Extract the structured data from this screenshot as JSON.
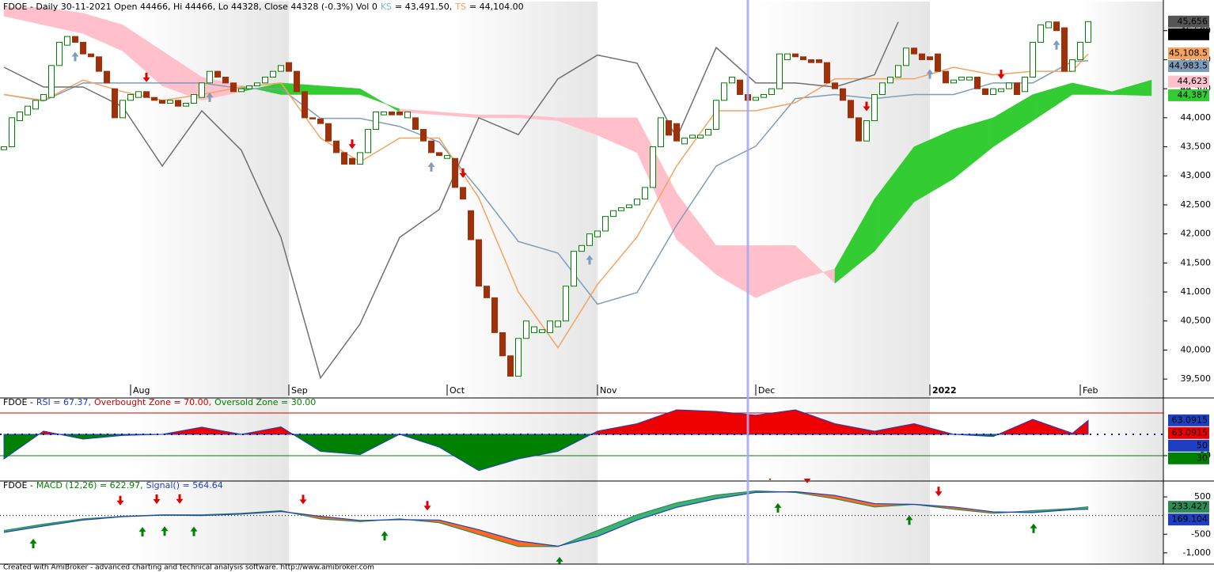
{
  "chart_data": [
    {
      "type": "candlestick",
      "title_parts": [
        {
          "text": "FDOE - Daily 30-11-2021 Open 44466, Hi 44466, Lo 44328, Close 44328 (-0.3%) Vol 0",
          "color": "#000000"
        },
        {
          "text": "KS",
          "color": "#7fb0d8"
        },
        {
          "text": "= 43,491.50,",
          "color": "#000000"
        },
        {
          "text": "TS",
          "color": "#f4a460"
        },
        {
          "text": "= 44,104.00",
          "color": "#000000"
        }
      ],
      "x_labels": [
        {
          "value": 16,
          "label": "Aug"
        },
        {
          "value": 36,
          "label": "Sep"
        },
        {
          "value": 56,
          "label": "Oct"
        },
        {
          "value": 75,
          "label": "Nov"
        },
        {
          "value": 95,
          "label": "Dec"
        },
        {
          "value": 117,
          "label": "2022"
        },
        {
          "value": 136,
          "label": "Feb"
        }
      ],
      "open": [
        43450,
        43500,
        43950,
        44050,
        44150,
        44300,
        44350,
        44900,
        45250,
        45400,
        45300,
        45100,
        45050,
        44800,
        44500,
        44000,
        44300,
        44350,
        44450,
        44350,
        44300,
        44250,
        44300,
        44200,
        44250,
        44350,
        44600,
        44800,
        44700,
        44600,
        44450,
        44500,
        44550,
        44600,
        44700,
        44800,
        44950,
        44800,
        44450,
        44000,
        43980,
        43900,
        43600,
        43400,
        43300,
        43200,
        43400,
        43800,
        44050,
        44100,
        44100,
        44000,
        44000,
        43800,
        43600,
        43400,
        43300,
        43300,
        42800,
        42400,
        41900,
        41100,
        40900,
        40300,
        39900,
        39550,
        40200,
        40300,
        40300,
        40300,
        40400,
        40500,
        41100,
        41700,
        41800,
        41950,
        42050,
        42300,
        42400,
        42450,
        42500,
        42600,
        42800,
        43500,
        43950,
        43900,
        43550,
        43650,
        43650,
        43700,
        43800,
        44300,
        44600,
        44650,
        44400,
        44300,
        44350,
        44400,
        44500,
        45000,
        45100,
        45050,
        45000,
        45000,
        44950,
        44600,
        44500,
        44300,
        44000,
        43600,
        43950,
        44400,
        44600,
        44700,
        44900,
        45200,
        45100,
        45050,
        45100,
        44800,
        44600,
        44650,
        44650,
        44700,
        44500,
        44400,
        44450,
        44500,
        44600,
        44450,
        44700,
        45300,
        45550,
        45650,
        45550,
        44800,
        45000,
        45300
      ],
      "close": [
        43500,
        44000,
        44100,
        44200,
        44300,
        44400,
        44900,
        45300,
        45400,
        45300,
        45100,
        45050,
        44800,
        44600,
        44000,
        44300,
        44400,
        44450,
        44350,
        44300,
        44250,
        44300,
        44200,
        44250,
        44400,
        44600,
        44800,
        44700,
        44600,
        44450,
        44500,
        44550,
        44600,
        44700,
        44800,
        44900,
        44800,
        44450,
        44000,
        43980,
        43900,
        43600,
        43400,
        43200,
        43200,
        43400,
        43800,
        44100,
        44100,
        44050,
        44050,
        44100,
        43800,
        43600,
        43400,
        43350,
        43350,
        42800,
        42600,
        41900,
        41100,
        40900,
        40300,
        39900,
        39550,
        40200,
        40500,
        40400,
        40350,
        40500,
        40500,
        41100,
        41700,
        41800,
        42000,
        42050,
        42300,
        42400,
        42450,
        42500,
        42600,
        42800,
        43500,
        44000,
        43700,
        43600,
        43650,
        43700,
        43700,
        43800,
        44300,
        44600,
        44700,
        44400,
        44300,
        44350,
        44400,
        44500,
        45100,
        45100,
        45050,
        45000,
        44950,
        44950,
        44600,
        44500,
        44300,
        44000,
        43600,
        43950,
        44400,
        44600,
        44700,
        44900,
        45200,
        45100,
        45000,
        45000,
        44800,
        44600,
        44650,
        44700,
        44700,
        44500,
        44400,
        44500,
        44500,
        44600,
        44400,
        44700,
        45300,
        45600,
        45650,
        45500,
        44800,
        45000,
        45300,
        45656
      ],
      "up_color": "#008000",
      "down_color": "#a0300a",
      "lines": [
        {
          "color": "#7f9db9",
          "x": [
            0,
            5,
            10,
            15,
            20,
            25,
            30,
            35,
            40,
            45,
            50,
            55,
            60,
            65,
            70,
            75,
            80,
            85,
            90,
            95,
            100,
            105,
            110,
            115,
            120,
            125,
            130,
            135,
            137
          ],
          "values": [
            44400,
            44290,
            44600,
            44600,
            44600,
            44600,
            44500,
            44500,
            43990,
            43990,
            43850,
            43580,
            42760,
            41870,
            41670,
            40790,
            40990,
            42150,
            43170,
            43510,
            44330,
            44400,
            44330,
            44400,
            44400,
            44600,
            44600,
            44970,
            44980
          ]
        },
        {
          "color": "#f4a460",
          "x": [
            0,
            5,
            10,
            15,
            20,
            25,
            30,
            35,
            40,
            45,
            50,
            55,
            60,
            65,
            70,
            75,
            80,
            85,
            90,
            95,
            100,
            105,
            110,
            115,
            120,
            125,
            130,
            135,
            137
          ],
          "values": [
            44400,
            44300,
            44650,
            44450,
            44300,
            44400,
            44530,
            44600,
            43650,
            43240,
            43650,
            43650,
            42620,
            41000,
            40040,
            41130,
            41950,
            43170,
            44120,
            44120,
            44260,
            44670,
            44670,
            44670,
            44870,
            44740,
            44800,
            44800,
            45100
          ]
        },
        {
          "color": "#707070",
          "x": [
            0,
            5,
            10,
            15,
            20,
            25,
            30,
            35,
            40,
            45,
            50,
            55,
            60,
            65,
            70,
            75,
            80,
            85,
            90,
            95,
            100,
            105,
            110,
            113
          ],
          "values": [
            44870,
            44530,
            44530,
            44190,
            43170,
            44120,
            43440,
            41940,
            39520,
            40450,
            41940,
            42420,
            44000,
            43710,
            44670,
            45080,
            44940,
            43650,
            45210,
            44600,
            44600,
            44530,
            44740,
            45650
          ]
        }
      ],
      "cloud": {
        "up_color": "#33cc33",
        "down_color": "#ffc0cb",
        "x": [
          0,
          5,
          10,
          15,
          20,
          25,
          30,
          35,
          40,
          45,
          50,
          55,
          60,
          65,
          70,
          75,
          80,
          85,
          90,
          95,
          100,
          105,
          110,
          115,
          120,
          125,
          130,
          135,
          140,
          145
        ],
        "span_a": [
          45750,
          45600,
          45450,
          45150,
          44550,
          44300,
          44450,
          44600,
          44550,
          44500,
          44100,
          44050,
          44000,
          44000,
          43950,
          43700,
          43400,
          41900,
          41300,
          40900,
          41200,
          41400,
          42600,
          43500,
          43800,
          44000,
          44400,
          44600,
          44450,
          44650
        ],
        "span_b": [
          45900,
          45900,
          45800,
          45600,
          45150,
          44700,
          44550,
          44400,
          44400,
          44400,
          44150,
          44100,
          44050,
          44050,
          44000,
          44000,
          44000,
          42700,
          41800,
          41800,
          41800,
          41150,
          41700,
          42550,
          42950,
          43500,
          43950,
          44400,
          44400,
          44380
        ]
      },
      "sell_signals": [
        18,
        44,
        58,
        109,
        126
      ],
      "buy_signals": [
        9,
        26,
        54,
        74,
        117,
        133
      ],
      "sell_color": "#e00000",
      "buy_color": "#7f9db9",
      "selected_index": 94,
      "ylim": [
        39420,
        45960
      ],
      "yticks": [
        {
          "value": 39500,
          "label": "39,500"
        },
        {
          "value": 40000,
          "label": "40,000"
        },
        {
          "value": 40500,
          "label": "40,500"
        },
        {
          "value": 41000,
          "label": "41,000"
        },
        {
          "value": 41500,
          "label": "41,500"
        },
        {
          "value": 42000,
          "label": "42,000"
        },
        {
          "value": 42500,
          "label": "42,500"
        },
        {
          "value": 43000,
          "label": "43,000"
        },
        {
          "value": 43500,
          "label": "43,500"
        },
        {
          "value": 44000,
          "label": "44,000"
        },
        {
          "value": 44500,
          "label": "44,500"
        },
        {
          "value": 45000,
          "label": "45,000"
        },
        {
          "value": 45500,
          "label": "45,500"
        }
      ],
      "value_tags": [
        {
          "value": 45656,
          "label": "45,656",
          "color": "#555555"
        },
        {
          "value": 45656,
          "label": "45,656",
          "color": "#000000"
        },
        {
          "value": 45108.5,
          "label": "45,108.5",
          "color": "#f4a460"
        },
        {
          "value": 44983.5,
          "label": "44,983.5",
          "color": "#7f9db9"
        },
        {
          "value": 44623,
          "label": "44,623",
          "color": "#ffc0cb"
        },
        {
          "value": 44387,
          "label": "44,387",
          "color": "#33cc33"
        }
      ]
    },
    {
      "type": "area",
      "title_parts": [
        {
          "text": "FDOE -",
          "color": "#000000"
        },
        {
          "text": "RSI = 67.37,",
          "color": "#1e40c0"
        },
        {
          "text": "Overbought Zone = 70.00,",
          "color": "#d00000"
        },
        {
          "text": "Oversold Zone = 30.00",
          "color": "#008000"
        }
      ],
      "x": [
        0,
        5,
        10,
        15,
        20,
        25,
        30,
        35,
        40,
        45,
        50,
        55,
        60,
        65,
        70,
        75,
        80,
        85,
        90,
        95,
        100,
        105,
        110,
        115,
        120,
        125,
        130,
        135,
        137
      ],
      "values": [
        27,
        53,
        45.5,
        49,
        50,
        56.7,
        50,
        57,
        34,
        31,
        50,
        38,
        16,
        27,
        34,
        53,
        60,
        73,
        71.5,
        68,
        73,
        60,
        53,
        60,
        50,
        48,
        64,
        51,
        63.0915
      ],
      "baseline": 50,
      "above_color": "#ee0000",
      "below_color": "#008000",
      "zones": [
        {
          "value": 70,
          "color": "#d00000"
        },
        {
          "value": 30,
          "color": "#008000"
        }
      ],
      "ylim": [
        7,
        82.6
      ],
      "yticks": [
        30
      ],
      "value_tags": [
        {
          "value": 63.0915,
          "label": "63.0915",
          "color": "#1e40c0"
        },
        {
          "value": 63.0915,
          "label": "63.0915",
          "color": "#ee0000"
        },
        {
          "value": 50,
          "label": "50",
          "color": "#1e40c0"
        },
        {
          "value": 30,
          "label": "30",
          "color": "#008000"
        }
      ]
    },
    {
      "type": "line",
      "title_parts": [
        {
          "text": "FDOE -",
          "color": "#000000"
        },
        {
          "text": "MACD (12,26) = 622.97,",
          "color": "#008000"
        },
        {
          "text": "Signal() = 564.64",
          "color": "#1e40c0"
        }
      ],
      "x": [
        0,
        5,
        10,
        15,
        20,
        25,
        30,
        35,
        40,
        45,
        50,
        55,
        60,
        65,
        70,
        75,
        80,
        85,
        90,
        95,
        100,
        105,
        110,
        115,
        120,
        125,
        130,
        135,
        137
      ],
      "series": [
        {
          "color": "#2e8b57",
          "values": [
            -400,
            -230,
            -90,
            -20,
            20,
            20,
            60,
            130,
            -90,
            -160,
            -90,
            -190,
            -510,
            -830,
            -830,
            -400,
            20,
            340,
            550,
            660,
            620,
            450,
            230,
            300,
            170,
            60,
            130,
            190,
            233.427
          ]
        },
        {
          "color": "#1e40c0",
          "values": [
            -450,
            -280,
            -120,
            -30,
            10,
            0,
            40,
            110,
            -20,
            -130,
            -110,
            -120,
            -380,
            -680,
            -820,
            -560,
            -120,
            220,
            450,
            620,
            640,
            540,
            320,
            300,
            230,
            100,
            80,
            160,
            169.104
          ]
        }
      ],
      "fill_up_color": "#3cb371",
      "fill_down_color": "#ff6a1a",
      "sell_signals": [
        14.7,
        19.3,
        22.2,
        37.8,
        53.5,
        96.8,
        101.5,
        118.1
      ],
      "buy_signals": [
        3.7,
        17.5,
        20.3,
        24,
        48.1,
        70.2,
        97.8,
        114.4,
        130.1
      ],
      "sell_color": "#e00000",
      "buy_color": "#008000",
      "baseline": 0,
      "ylim": [
        -1300,
        883
      ],
      "yticks": [
        500,
        -500,
        {
          "value": -1000,
          "label": "-1,000"
        }
      ],
      "value_tags": [
        {
          "value": 233.427,
          "label": "233.427",
          "color": "#2e8b57"
        },
        {
          "value": 169.104,
          "label": "169.104",
          "color": "#1e40c0"
        }
      ]
    }
  ],
  "footer": "Created with AmiBroker - advanced charting and technical analysis software. http://www.amibroker.com"
}
